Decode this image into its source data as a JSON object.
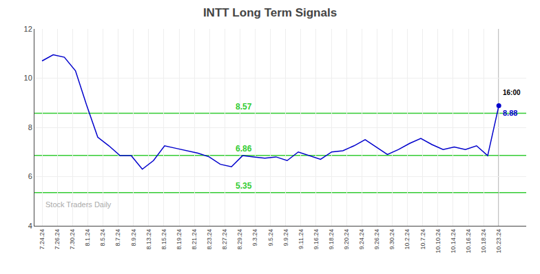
{
  "chart_data": {
    "type": "line",
    "title": "INTT Long Term Signals",
    "x": [
      0,
      0.7317,
      1.4634,
      2.1951,
      2.9268,
      3.6585,
      4.3902,
      5.122,
      5.8537,
      6.5854,
      7.3171,
      8.0488,
      8.7805,
      9.5122,
      10.2439,
      10.9756,
      11.7073,
      12.439,
      13.1707,
      13.9024,
      14.6341,
      15.3659,
      16.0976,
      16.8293,
      17.561,
      18.2927,
      19.0244,
      19.7561,
      20.4878,
      21.2195,
      21.9512,
      22.6829,
      23.4146,
      24.1463,
      24.878,
      25.6098,
      26.3415,
      27.0732,
      27.8049,
      28.5366,
      29.2683,
      30
    ],
    "values": [
      10.7,
      10.95,
      10.85,
      10.3,
      8.9,
      7.6,
      7.25,
      6.85,
      6.85,
      6.3,
      6.65,
      7.25,
      7.15,
      7.05,
      6.95,
      6.8,
      6.5,
      6.4,
      6.85,
      6.8,
      6.75,
      6.8,
      6.65,
      7.0,
      6.85,
      6.7,
      7.0,
      7.05,
      7.25,
      7.5,
      7.2,
      6.9,
      7.1,
      7.35,
      7.55,
      7.3,
      7.1,
      7.2,
      7.1,
      7.25,
      6.85,
      8.88
    ],
    "color": "#0000cc",
    "xlim": [
      -0.5,
      31.8
    ],
    "xticks": [
      {
        "value": 0,
        "label": "7.24.24"
      },
      {
        "value": 1,
        "label": "7.26.24"
      },
      {
        "value": 2,
        "label": "7.30.24"
      },
      {
        "value": 3,
        "label": "8.1.24"
      },
      {
        "value": 4,
        "label": "8.5.24"
      },
      {
        "value": 5,
        "label": "8.7.24"
      },
      {
        "value": 6,
        "label": "8.9.24"
      },
      {
        "value": 7,
        "label": "8.13.24"
      },
      {
        "value": 8,
        "label": "8.15.24"
      },
      {
        "value": 9,
        "label": "8.19.24"
      },
      {
        "value": 10,
        "label": "8.21.24"
      },
      {
        "value": 11,
        "label": "8.23.24"
      },
      {
        "value": 12,
        "label": "8.27.24"
      },
      {
        "value": 13,
        "label": "8.29.24"
      },
      {
        "value": 14,
        "label": "9.3.24"
      },
      {
        "value": 15,
        "label": "9.5.24"
      },
      {
        "value": 16,
        "label": "9.9.24"
      },
      {
        "value": 17,
        "label": "9.11.24"
      },
      {
        "value": 18,
        "label": "9.16.24"
      },
      {
        "value": 19,
        "label": "9.18.24"
      },
      {
        "value": 20,
        "label": "9.20.24"
      },
      {
        "value": 21,
        "label": "9.24.24"
      },
      {
        "value": 22,
        "label": "9.26.24"
      },
      {
        "value": 23,
        "label": "9.30.24"
      },
      {
        "value": 24,
        "label": "10.2.24"
      },
      {
        "value": 25,
        "label": "10.7.24"
      },
      {
        "value": 26,
        "label": "10.10.24"
      },
      {
        "value": 27,
        "label": "10.14.24"
      },
      {
        "value": 28,
        "label": "10.16.24"
      },
      {
        "value": 29,
        "label": "10.18.24"
      },
      {
        "value": 30,
        "label": "10.23.24"
      }
    ],
    "ylim": [
      4,
      12
    ],
    "yticks": [
      4,
      6,
      8,
      10,
      12
    ],
    "grid": true,
    "hlines": [
      {
        "value": 8.57,
        "label": "8.57",
        "color": "#33cc33"
      },
      {
        "value": 6.86,
        "label": "6.86",
        "color": "#33cc33"
      },
      {
        "value": 5.35,
        "label": "5.35",
        "color": "#33cc33"
      }
    ],
    "vline_color": "#666666",
    "last_point": {
      "marker": "circle",
      "color": "#0000cc",
      "label": "16:00",
      "label_color": "#000000",
      "value_label": "8.88",
      "value_label_color": "#0000cc"
    },
    "watermark": {
      "text": "Stock Traders Daily",
      "color": "#aaaaaa"
    }
  }
}
